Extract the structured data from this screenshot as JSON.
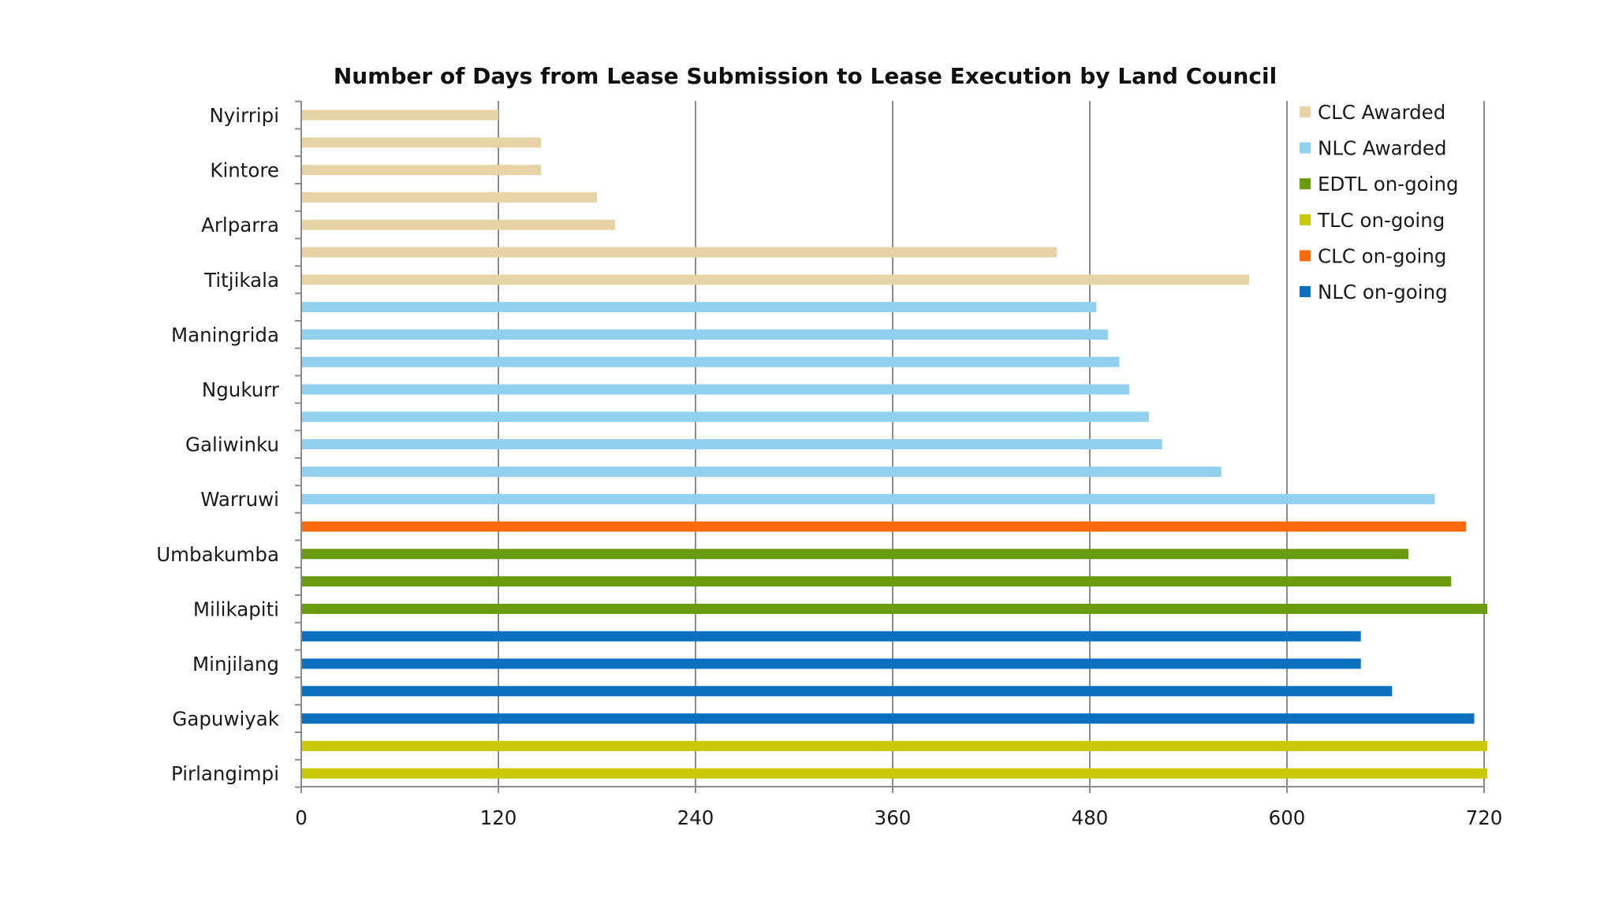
{
  "chart_data": {
    "type": "bar",
    "orientation": "horizontal",
    "title": "Number of Days from Lease Submission to Lease Execution by Land Council",
    "xlabel": "",
    "ylabel": "",
    "xlim": [
      0,
      720
    ],
    "x_ticks": [
      0,
      120,
      240,
      360,
      480,
      600,
      720
    ],
    "grid": "vertical",
    "legend_position": "top-right",
    "category_labels": [
      "Nyirripi",
      "Kintore",
      "Arlparra",
      "Titjikala",
      "Maningrida",
      "Ngukurr",
      "Galiwinku",
      "Warruwi",
      "Umbakumba",
      "Milikapiti",
      "Minjilang",
      "Gapuwiyak",
      "Pirlangimpi"
    ],
    "series": [
      {
        "name": "CLC Awarded",
        "color": "#e8d3a6"
      },
      {
        "name": "NLC Awarded",
        "color": "#92d0f0"
      },
      {
        "name": "EDTL on-going",
        "color": "#6a9a10"
      },
      {
        "name": "TLC on-going",
        "color": "#c9c90a"
      },
      {
        "name": "CLC on-going",
        "color": "#fa6a0a"
      },
      {
        "name": "NLC on-going",
        "color": "#0a70bf"
      }
    ],
    "bars": [
      {
        "series": "CLC Awarded",
        "value": 120
      },
      {
        "series": "CLC Awarded",
        "value": 146
      },
      {
        "series": "CLC Awarded",
        "value": 146
      },
      {
        "series": "CLC Awarded",
        "value": 180
      },
      {
        "series": "CLC Awarded",
        "value": 191
      },
      {
        "series": "CLC Awarded",
        "value": 460
      },
      {
        "series": "CLC Awarded",
        "value": 577
      },
      {
        "series": "NLC Awarded",
        "value": 484
      },
      {
        "series": "NLC Awarded",
        "value": 491
      },
      {
        "series": "NLC Awarded",
        "value": 498
      },
      {
        "series": "NLC Awarded",
        "value": 504
      },
      {
        "series": "NLC Awarded",
        "value": 516
      },
      {
        "series": "NLC Awarded",
        "value": 524
      },
      {
        "series": "NLC Awarded",
        "value": 560
      },
      {
        "series": "NLC Awarded",
        "value": 690
      },
      {
        "series": "CLC on-going",
        "value": 709
      },
      {
        "series": "EDTL on-going",
        "value": 674
      },
      {
        "series": "EDTL on-going",
        "value": 700
      },
      {
        "series": "EDTL on-going",
        "value": 722
      },
      {
        "series": "NLC on-going",
        "value": 645
      },
      {
        "series": "NLC on-going",
        "value": 645
      },
      {
        "series": "NLC on-going",
        "value": 664
      },
      {
        "series": "NLC on-going",
        "value": 714
      },
      {
        "series": "TLC on-going",
        "value": 722
      },
      {
        "series": "TLC on-going",
        "value": 722
      }
    ]
  }
}
